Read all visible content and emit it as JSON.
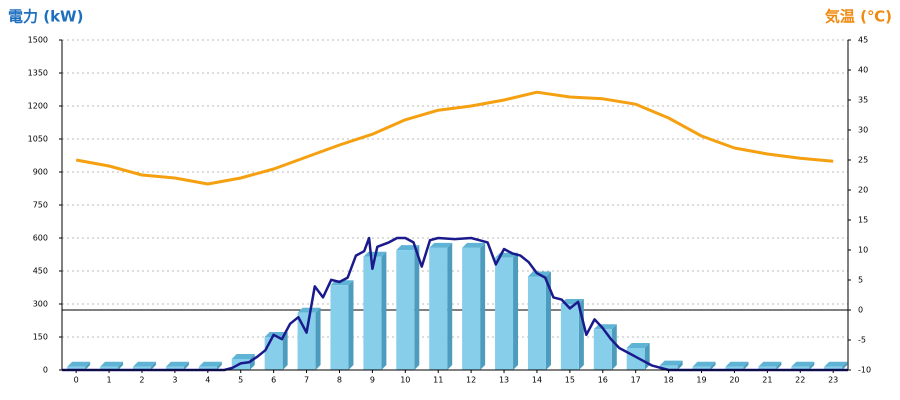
{
  "chart_data": {
    "type": "combo",
    "title_left": "電力 (kW)",
    "title_left_color": "#1f6fc0",
    "title_right": "気温 (℃)",
    "title_right_color": "#f08a10",
    "xlim": [
      -0.43,
      23.45
    ],
    "xticks": [
      0,
      1,
      2,
      3,
      4,
      5,
      6,
      7,
      8,
      9,
      10,
      11,
      12,
      13,
      14,
      15,
      16,
      17,
      18,
      19,
      20,
      21,
      22,
      23
    ],
    "ylim": [
      0,
      1500
    ],
    "yticks": [
      0,
      150,
      300,
      450,
      600,
      750,
      900,
      1050,
      1200,
      1350,
      1500
    ],
    "y2lim": [
      -10,
      45
    ],
    "y2ticks": [
      -10,
      -5,
      0,
      5,
      10,
      15,
      20,
      25,
      30,
      35,
      40,
      45
    ],
    "grid": true,
    "y2_zero_line": true,
    "series": [
      {
        "type": "bar",
        "color": "#87ceeb",
        "x": [
          0,
          1,
          2,
          3,
          4,
          5,
          6,
          7,
          8,
          9,
          10,
          11,
          12,
          13,
          14,
          15,
          16,
          17,
          18,
          19,
          20,
          21,
          22,
          23
        ],
        "values": [
          15,
          15,
          15,
          15,
          15,
          50,
          150,
          260,
          385,
          515,
          545,
          555,
          555,
          510,
          425,
          300,
          185,
          100,
          20,
          15,
          15,
          15,
          15,
          15
        ]
      },
      {
        "type": "line",
        "color": "#1a1a8c",
        "x": [
          -0.43,
          4.5,
          4.75,
          5,
          5.25,
          5.5,
          5.75,
          6,
          6.25,
          6.5,
          6.75,
          7,
          7.25,
          7.5,
          7.75,
          8,
          8.25,
          8.5,
          8.75,
          8.9,
          9,
          9.15,
          9.5,
          9.75,
          10,
          10.25,
          10.5,
          10.75,
          11,
          11.5,
          12,
          12.25,
          12.5,
          12.75,
          13,
          13.25,
          13.5,
          13.75,
          14,
          14.25,
          14.5,
          14.75,
          15,
          15.25,
          15.5,
          15.75,
          16,
          16.25,
          16.5,
          17,
          17.5,
          18,
          23.45
        ],
        "values": [
          0,
          0,
          10,
          30,
          35,
          60,
          90,
          160,
          140,
          210,
          240,
          170,
          380,
          330,
          410,
          400,
          420,
          520,
          540,
          600,
          460,
          560,
          580,
          600,
          600,
          580,
          470,
          590,
          600,
          595,
          600,
          590,
          580,
          480,
          550,
          530,
          520,
          490,
          440,
          420,
          330,
          320,
          280,
          310,
          160,
          230,
          190,
          140,
          100,
          60,
          20,
          0,
          0
        ]
      },
      {
        "type": "line",
        "axis": "y2",
        "color": "#f5a010",
        "x": [
          0,
          1,
          2,
          3,
          4,
          5,
          6,
          7,
          8,
          9,
          10,
          11,
          12,
          13,
          14,
          15,
          16,
          17,
          18,
          19,
          20,
          21,
          22,
          23
        ],
        "values": [
          25,
          24,
          22.5,
          22,
          21,
          22,
          23.5,
          25.5,
          27.5,
          29.3,
          31.7,
          33.3,
          34,
          35,
          36.3,
          35.5,
          35.2,
          34.3,
          32,
          29,
          27,
          26,
          25.3,
          24.8
        ]
      }
    ]
  }
}
